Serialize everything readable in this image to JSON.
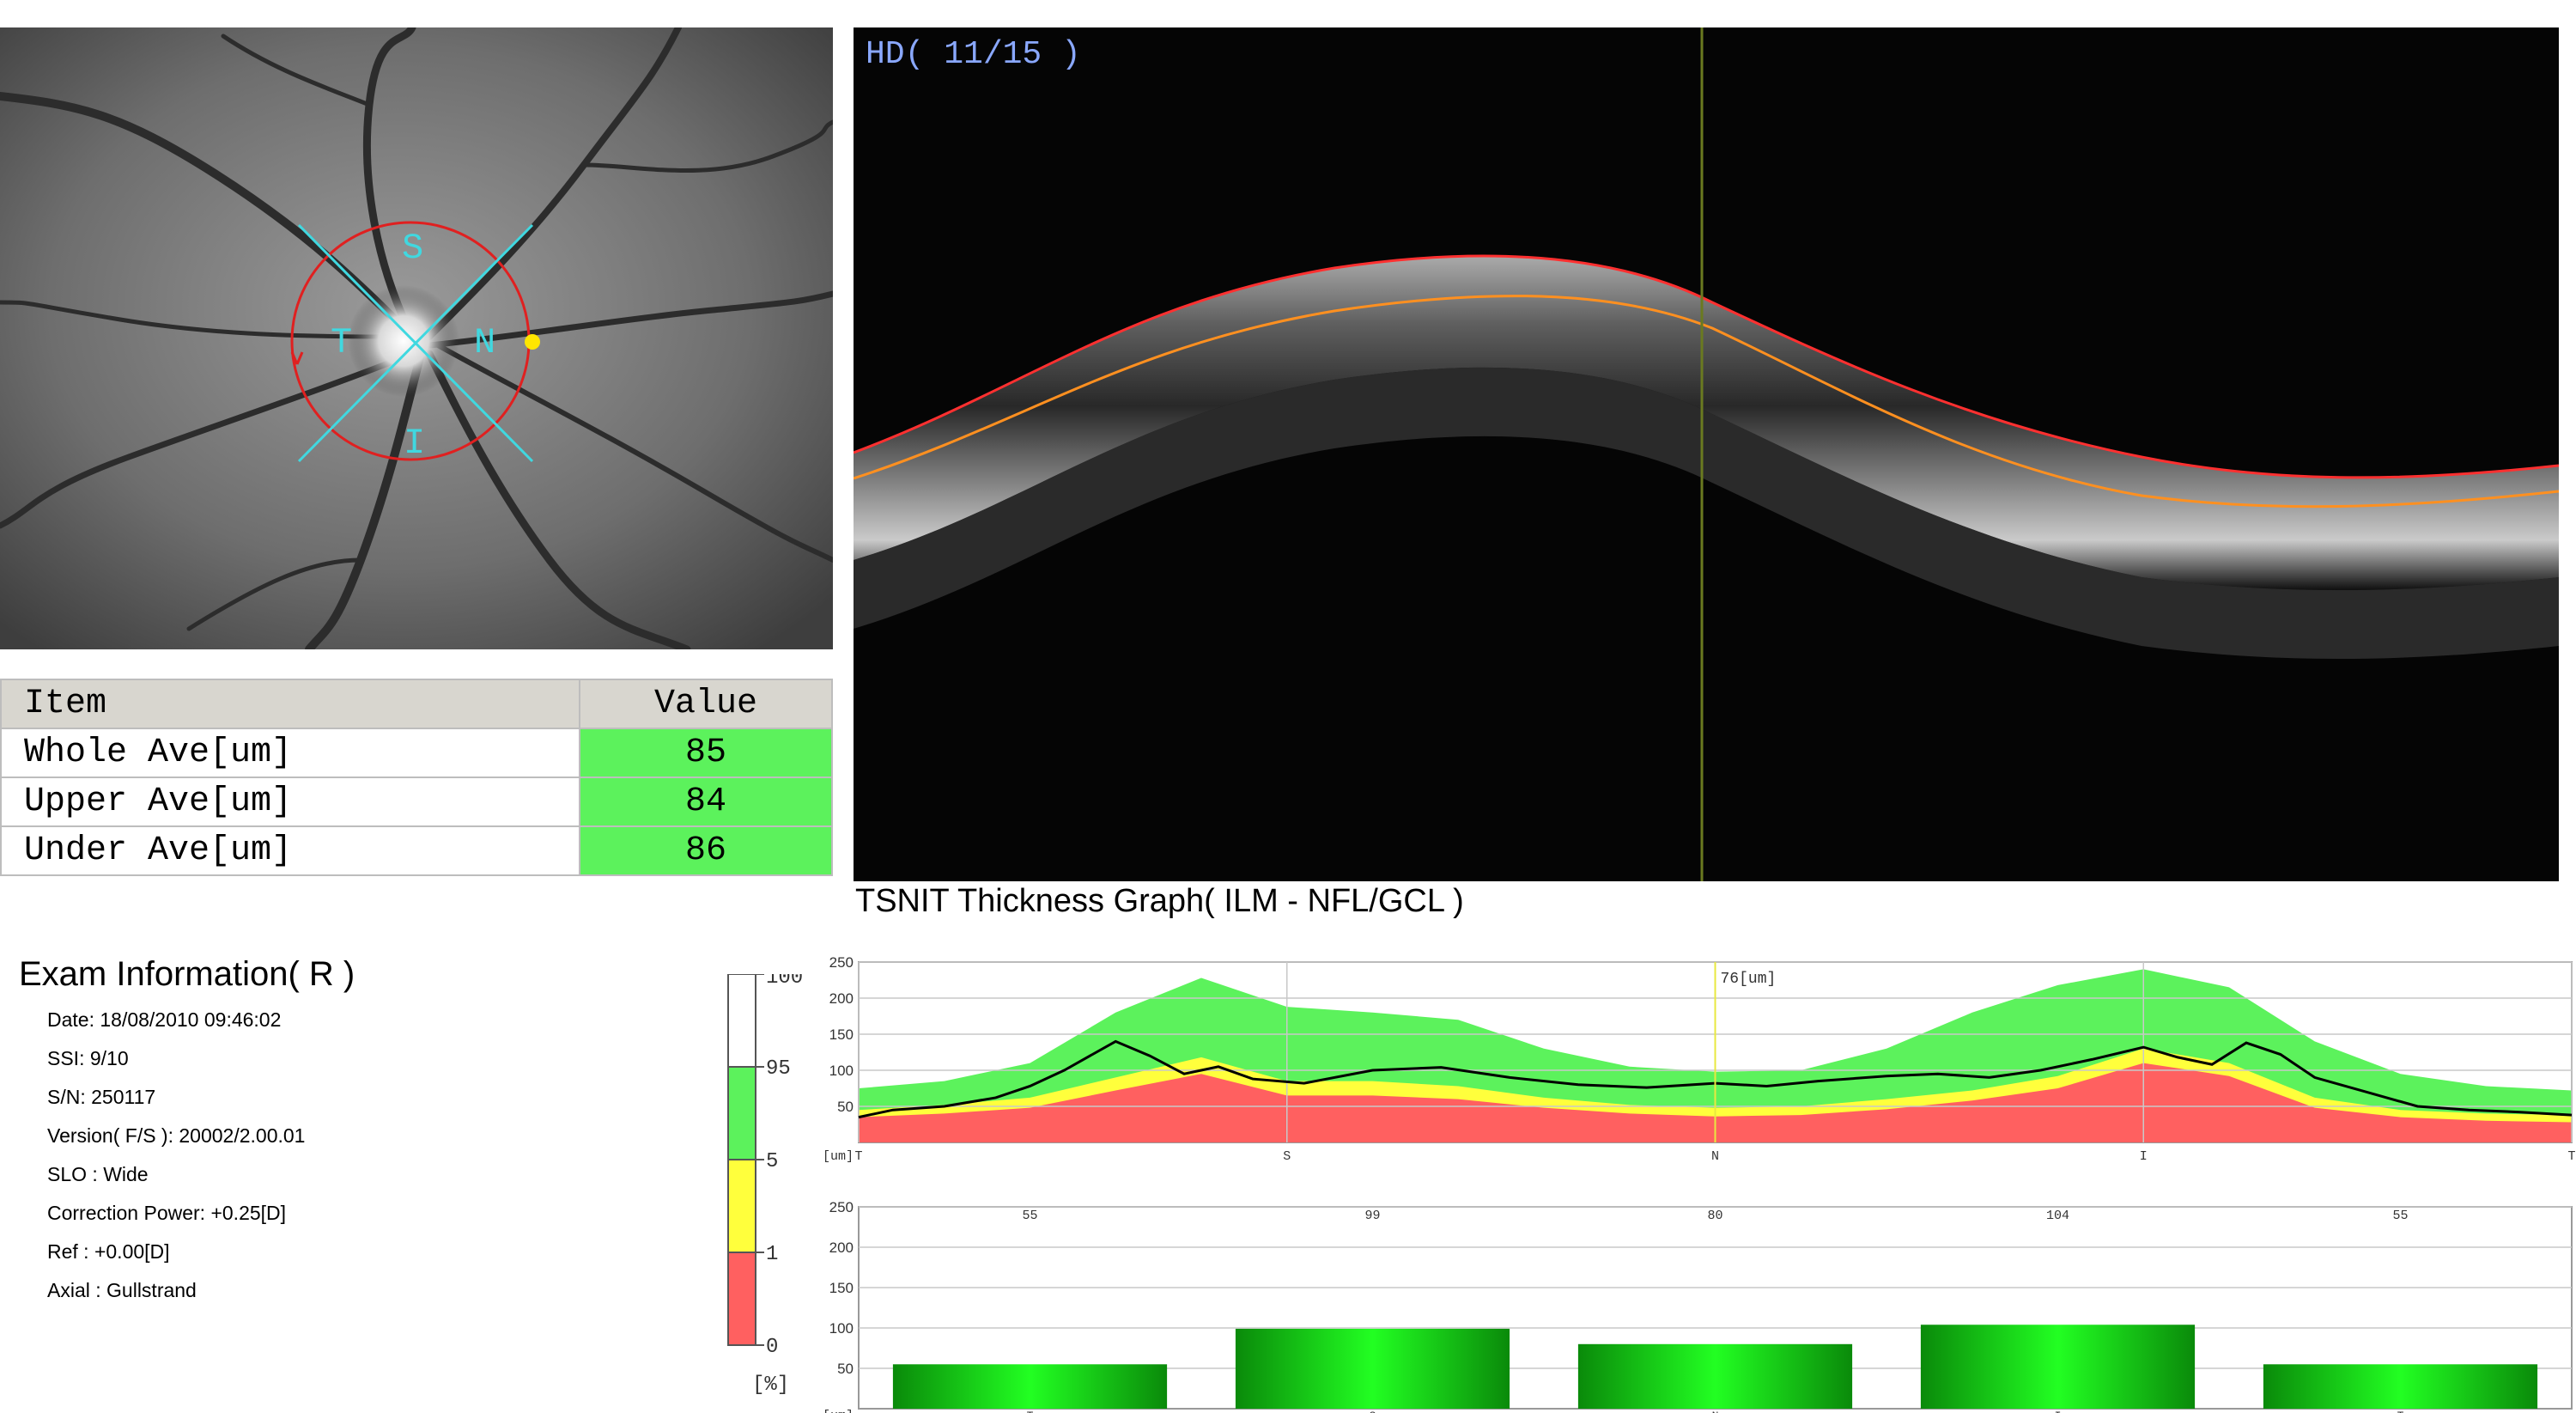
{
  "oct_header": "HD( 11/15 )",
  "fundus": {
    "sector_labels": [
      "S",
      "T",
      "N",
      "I"
    ]
  },
  "table": {
    "headers": [
      "Item",
      "Value"
    ],
    "rows": [
      {
        "label": "Whole Ave[um]",
        "value": "85"
      },
      {
        "label": "Upper Ave[um]",
        "value": "84"
      },
      {
        "label": "Under Ave[um]",
        "value": "86"
      }
    ]
  },
  "tsnit_title": "TSNIT Thickness Graph( ILM - NFL/GCL )",
  "exam": {
    "title": "Exam Information( R )",
    "lines": [
      "Date: 18/08/2010 09:46:02",
      "SSI:  9/10",
      "S/N: 250117",
      "Version( F/S ): 20002/2.00.01",
      "SLO : Wide",
      "Correction Power: +0.25[D]",
      "Ref : +0.00[D]",
      "Axial : Gullstrand"
    ]
  },
  "percentile_legend": {
    "ticks": [
      "100",
      "95",
      "5",
      "1",
      "0"
    ],
    "unit": "[%]",
    "colors": {
      "white": "#ffffff",
      "green": "#5cf25c",
      "yellow": "#ffff3c",
      "red": "#ff6060"
    }
  },
  "chart_data": [
    {
      "type": "line",
      "title": "",
      "ylabel": "[um]",
      "ylim": [
        0,
        250
      ],
      "yticks": [
        "250",
        "200",
        "150",
        "100",
        "50"
      ],
      "xtick_labels": [
        "T",
        "S",
        "N",
        "I",
        "T"
      ],
      "cursor_label": "76[um]",
      "grid": true,
      "bands": {
        "x": [
          0,
          0.05,
          0.1,
          0.15,
          0.2,
          0.25,
          0.3,
          0.35,
          0.4,
          0.45,
          0.5,
          0.55,
          0.6,
          0.65,
          0.7,
          0.75,
          0.8,
          0.85,
          0.9,
          0.95,
          1
        ],
        "p95": [
          75,
          85,
          110,
          180,
          228,
          188,
          180,
          170,
          130,
          105,
          98,
          100,
          130,
          180,
          218,
          240,
          215,
          140,
          95,
          78,
          72
        ],
        "p5": [
          45,
          52,
          62,
          90,
          118,
          85,
          85,
          78,
          62,
          52,
          48,
          50,
          60,
          72,
          92,
          130,
          110,
          62,
          45,
          40,
          38
        ],
        "p1": [
          35,
          40,
          48,
          72,
          95,
          65,
          65,
          60,
          48,
          40,
          36,
          38,
          46,
          58,
          75,
          110,
          92,
          48,
          35,
          30,
          28
        ]
      },
      "series": [
        {
          "x": [
            0,
            0.02,
            0.05,
            0.08,
            0.1,
            0.12,
            0.15,
            0.17,
            0.19,
            0.21,
            0.23,
            0.26,
            0.3,
            0.34,
            0.38,
            0.42,
            0.46,
            0.5,
            0.53,
            0.56,
            0.6,
            0.63,
            0.66,
            0.69,
            0.72,
            0.75,
            0.77,
            0.79,
            0.81,
            0.83,
            0.85,
            0.88,
            0.91,
            0.94,
            0.97,
            1
          ],
          "values": [
            35,
            45,
            50,
            62,
            78,
            100,
            140,
            120,
            95,
            105,
            88,
            82,
            100,
            104,
            90,
            80,
            76,
            82,
            78,
            85,
            92,
            95,
            90,
            100,
            115,
            132,
            118,
            108,
            138,
            122,
            90,
            70,
            50,
            45,
            42,
            38
          ]
        }
      ]
    },
    {
      "type": "bar",
      "title": "",
      "ylabel": "[um]",
      "ylim": [
        0,
        250
      ],
      "yticks": [
        "250",
        "200",
        "150",
        "100",
        "50"
      ],
      "categories": [
        "T",
        "S",
        "N",
        "I",
        "T"
      ],
      "values": [
        55,
        99,
        80,
        104,
        55
      ],
      "value_labels": [
        "55",
        "99",
        "80",
        "104",
        "55"
      ]
    }
  ]
}
